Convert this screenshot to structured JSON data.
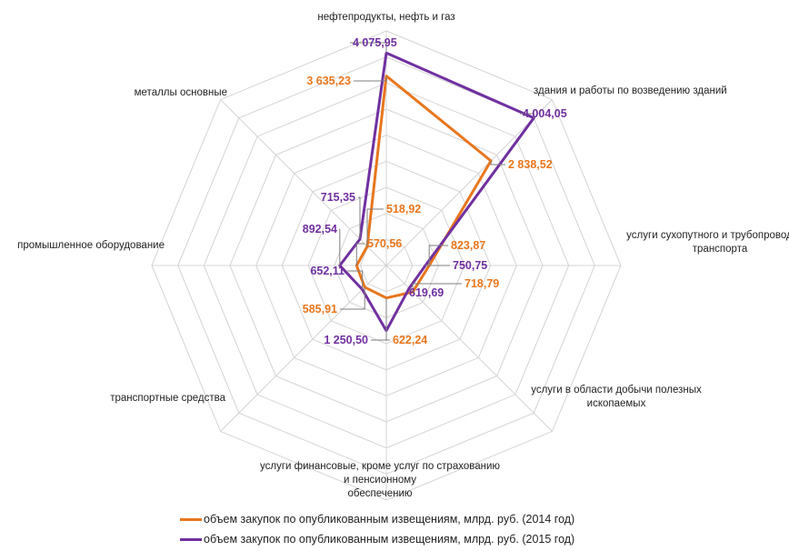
{
  "chart_data": {
    "type": "radar",
    "categories": [
      "нефтепродукты, нефть и газ",
      "здания и работы по возведению зданий",
      "услуги сухопутного и трубопроводного транспорта",
      "услуги в области добычи полезных ископаемых",
      "услуги финансовые, кроме услуг по страхованию и пенсионному обеспечению",
      "транспортные средства",
      "промышленное оборудование",
      "металлы основные"
    ],
    "series": [
      {
        "name": "объем закупок по опубликованным извещениям, млрд. руб. (2014 год)",
        "color": "#e8761d",
        "values": [
          3635.23,
          2838.52,
          823.87,
          718.79,
          622.24,
          585.91,
          570.56,
          518.92
        ],
        "labels": [
          "3 635,23",
          "2 838,52",
          "823,87",
          "718,79",
          "622,24",
          "585,91",
          "570,56",
          "518,92"
        ]
      },
      {
        "name": "объем закупок по опубликованным извещениям, млрд. руб. (2015 год)",
        "color": "#7030a0",
        "values": [
          4075.95,
          4004.05,
          750.75,
          619.69,
          1250.5,
          652.11,
          892.54,
          715.35
        ],
        "labels": [
          "4 075,95",
          "4 004,05",
          "750,75",
          "619,69",
          "1 250,50",
          "652,11",
          "892,54",
          "715,35"
        ]
      }
    ],
    "rlim": [
      0,
      4500
    ],
    "grid": true,
    "legend": "bottom"
  }
}
